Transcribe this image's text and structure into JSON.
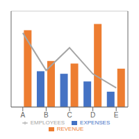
{
  "chart_data": {
    "type": "bar",
    "categories": [
      "A",
      "B",
      "C",
      "D",
      "E"
    ],
    "series": [
      {
        "name": "EXPENSES",
        "color": "#4472C4",
        "values": [
          0,
          28,
          26,
          20,
          12
        ]
      },
      {
        "name": "REVENUE",
        "color": "#ED7D31",
        "values": [
          60,
          36,
          34,
          65,
          30
        ]
      },
      {
        "name": "EMPLOYEES",
        "type": "line",
        "axis": "y2",
        "color": "#A5A5A5",
        "values": [
          85,
          42,
          68,
          38,
          22
        ]
      }
    ],
    "ylim": [
      0,
      75
    ],
    "yticks": [
      0,
      10,
      20,
      30,
      40,
      50,
      60,
      70
    ],
    "y2lim": [
      0,
      110
    ],
    "grid": true,
    "legend": "bottom",
    "tick_labels": "x"
  }
}
